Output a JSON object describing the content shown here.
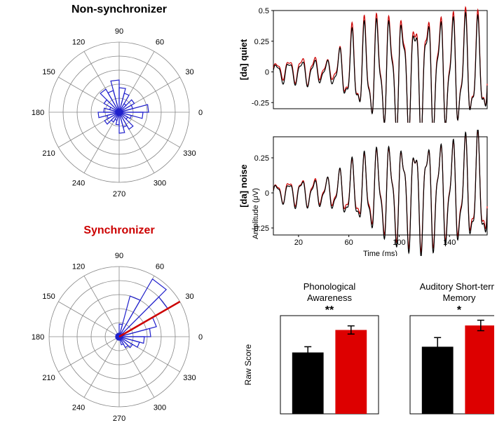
{
  "polar_nonsync": {
    "title": "Non-synchronizer",
    "title_color": "#000000",
    "title_fontsize": 14,
    "angle_labels": [
      0,
      30,
      60,
      90,
      120,
      150,
      180,
      210,
      240,
      270,
      300,
      330
    ],
    "angle_label_fontsize": 11,
    "ring_radii": [
      20,
      40,
      60,
      80,
      100
    ],
    "line_color": "#888888",
    "wedge_stroke": "#2020cc",
    "wedge_fill": "none",
    "bins_deg": [
      0,
      15,
      30,
      45,
      60,
      75,
      90,
      105,
      120,
      135,
      150,
      165,
      180,
      195,
      210,
      225,
      240,
      255,
      270,
      285,
      300,
      315,
      330,
      345
    ],
    "bin_lengths": [
      42,
      20,
      25,
      14,
      28,
      35,
      46,
      32,
      38,
      25,
      14,
      22,
      30,
      18,
      24,
      16,
      12,
      18,
      30,
      22,
      28,
      14,
      18,
      34
    ],
    "mean_vector": null
  },
  "polar_sync": {
    "title": "Synchronizer",
    "title_color": "#cc0000",
    "title_fontsize": 14,
    "angle_labels": [
      0,
      30,
      60,
      90,
      120,
      150,
      180,
      210,
      240,
      270,
      300,
      330
    ],
    "angle_label_fontsize": 11,
    "ring_radii": [
      20,
      40,
      60,
      80,
      100
    ],
    "line_color": "#888888",
    "wedge_stroke": "#2020cc",
    "wedge_fill": "none",
    "bins_deg": [
      0,
      15,
      30,
      45,
      60,
      75,
      90,
      105,
      120,
      135,
      150,
      165,
      180,
      195,
      210,
      225,
      240,
      255,
      270,
      285,
      300,
      315,
      330,
      345
    ],
    "bin_lengths": [
      45,
      55,
      80,
      95,
      60,
      18,
      5,
      5,
      5,
      5,
      5,
      5,
      5,
      5,
      5,
      5,
      5,
      5,
      5,
      12,
      18,
      22,
      30,
      36
    ],
    "mean_vector": {
      "angle_deg": 30,
      "length": 100,
      "color": "#cc0000",
      "linewidth": 2.5
    }
  },
  "waveforms": {
    "xlim": [
      0,
      170
    ],
    "xlabel": "Time (ms)",
    "ylabel": "Amplitude (μV)",
    "axis_fontsize": 11,
    "grid_color": "none",
    "xticks": [
      20,
      60,
      100,
      140
    ],
    "top": {
      "side_label": "[da] quiet",
      "ylim": [
        -0.3,
        0.5
      ],
      "yticks": [
        -0.25,
        0,
        0.25,
        0.5
      ],
      "series": [
        {
          "color": "#cc0000",
          "linewidth": 1.2,
          "freq_hz": 100,
          "amp_env": [
            0.05,
            0.08,
            0.1,
            0.12,
            0.06,
            0.1,
            0.3,
            0.36,
            0.4,
            0.42,
            0.46,
            0.44,
            0.48,
            0.44,
            0.42,
            0.44,
            0.4
          ],
          "offset": 0.02
        },
        {
          "color": "#000000",
          "linewidth": 1.2,
          "freq_hz": 100,
          "amp_env": [
            0.06,
            0.09,
            0.09,
            0.11,
            0.07,
            0.12,
            0.28,
            0.34,
            0.38,
            0.4,
            0.44,
            0.42,
            0.46,
            0.42,
            0.4,
            0.42,
            0.38
          ],
          "offset": 0.0
        }
      ]
    },
    "bottom": {
      "side_label": "[da] noise",
      "ylim": [
        -0.3,
        0.4
      ],
      "yticks": [
        -0.25,
        0,
        0.25
      ],
      "series": [
        {
          "color": "#cc0000",
          "linewidth": 1.2,
          "freq_hz": 100,
          "amp_env": [
            0.05,
            0.08,
            0.09,
            0.1,
            0.08,
            0.12,
            0.18,
            0.22,
            0.26,
            0.3,
            0.32,
            0.34,
            0.36,
            0.34,
            0.32,
            0.34,
            0.36
          ],
          "offset": 0.01
        },
        {
          "color": "#000000",
          "linewidth": 1.2,
          "freq_hz": 100,
          "amp_env": [
            0.06,
            0.07,
            0.1,
            0.09,
            0.09,
            0.13,
            0.2,
            0.24,
            0.28,
            0.32,
            0.34,
            0.36,
            0.38,
            0.36,
            0.34,
            0.36,
            0.38
          ],
          "offset": 0.0
        }
      ]
    }
  },
  "bars": {
    "ylabel": "Raw Score",
    "ylabel_fontsize": 12,
    "panels": [
      {
        "title_line1": "Phonological",
        "title_line2": "Awareness",
        "sig": "**",
        "sig_fontsize": 16,
        "ylim": [
          0,
          24
        ],
        "bars": [
          {
            "color": "#000000",
            "value": 15,
            "err": 1.4
          },
          {
            "color": "#dd0000",
            "value": 20.5,
            "err": 1.0
          }
        ],
        "bar_width": 0.7,
        "err_color": "#000000",
        "err_on_red": "#ffffff"
      },
      {
        "title_line1": "Auditory Short-term",
        "title_line2": "Memory",
        "sig": "*",
        "sig_fontsize": 16,
        "ylim": [
          0,
          30
        ],
        "bars": [
          {
            "color": "#000000",
            "value": 20.5,
            "err": 2.8
          },
          {
            "color": "#dd0000",
            "value": 27,
            "err": 1.6
          }
        ],
        "bar_width": 0.7,
        "err_color": "#000000",
        "err_on_red": "#ffffff"
      }
    ]
  },
  "colors": {
    "axis": "#000000",
    "grid": "#cccccc"
  }
}
